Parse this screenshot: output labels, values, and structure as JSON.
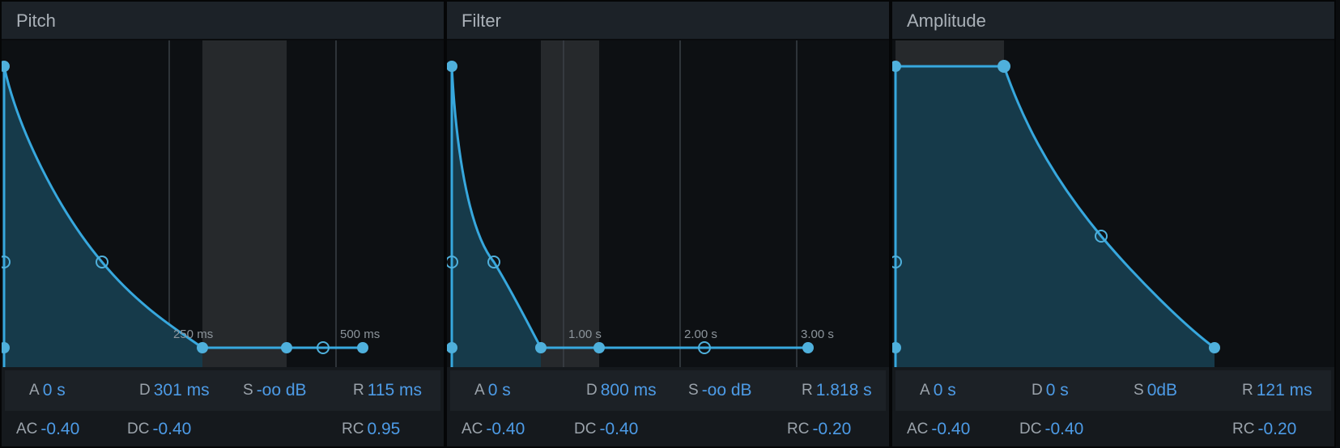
{
  "panels": [
    {
      "title": "Pitch",
      "params": [
        {
          "label": "A",
          "value": "0 s"
        },
        {
          "label": "D",
          "value": "301 ms"
        },
        {
          "label": "S",
          "value": "-oo dB"
        },
        {
          "label": "R",
          "value": "115 ms"
        }
      ],
      "curves": [
        {
          "label": "AC",
          "value": "-0.40"
        },
        {
          "label": "DC",
          "value": "-0.40"
        },
        {
          "label": "RC",
          "value": "0.95"
        }
      ],
      "time_ticks": [
        "250 ms",
        "500 ms"
      ]
    },
    {
      "title": "Filter",
      "params": [
        {
          "label": "A",
          "value": "0 s"
        },
        {
          "label": "D",
          "value": "800 ms"
        },
        {
          "label": "S",
          "value": "-oo dB"
        },
        {
          "label": "R",
          "value": "1.818 s"
        }
      ],
      "curves": [
        {
          "label": "AC",
          "value": "-0.40"
        },
        {
          "label": "DC",
          "value": "-0.40"
        },
        {
          "label": "RC",
          "value": "-0.20"
        }
      ],
      "time_ticks": [
        "1.00 s",
        "2.00 s",
        "3.00 s"
      ]
    },
    {
      "title": "Amplitude",
      "params": [
        {
          "label": "A",
          "value": "0 s"
        },
        {
          "label": "D",
          "value": "0 s"
        },
        {
          "label": "S",
          "value": "0dB"
        },
        {
          "label": "R",
          "value": "121 ms"
        }
      ],
      "curves": [
        {
          "label": "AC",
          "value": "-0.40"
        },
        {
          "label": "DC",
          "value": "-0.40"
        },
        {
          "label": "RC",
          "value": "-0.20"
        }
      ],
      "time_ticks": []
    }
  ],
  "colors": {
    "envelope_line": "#37a8de",
    "envelope_fill": "#163a4a",
    "value_text": "#4d9be6",
    "label_text": "#9ba3ab"
  }
}
